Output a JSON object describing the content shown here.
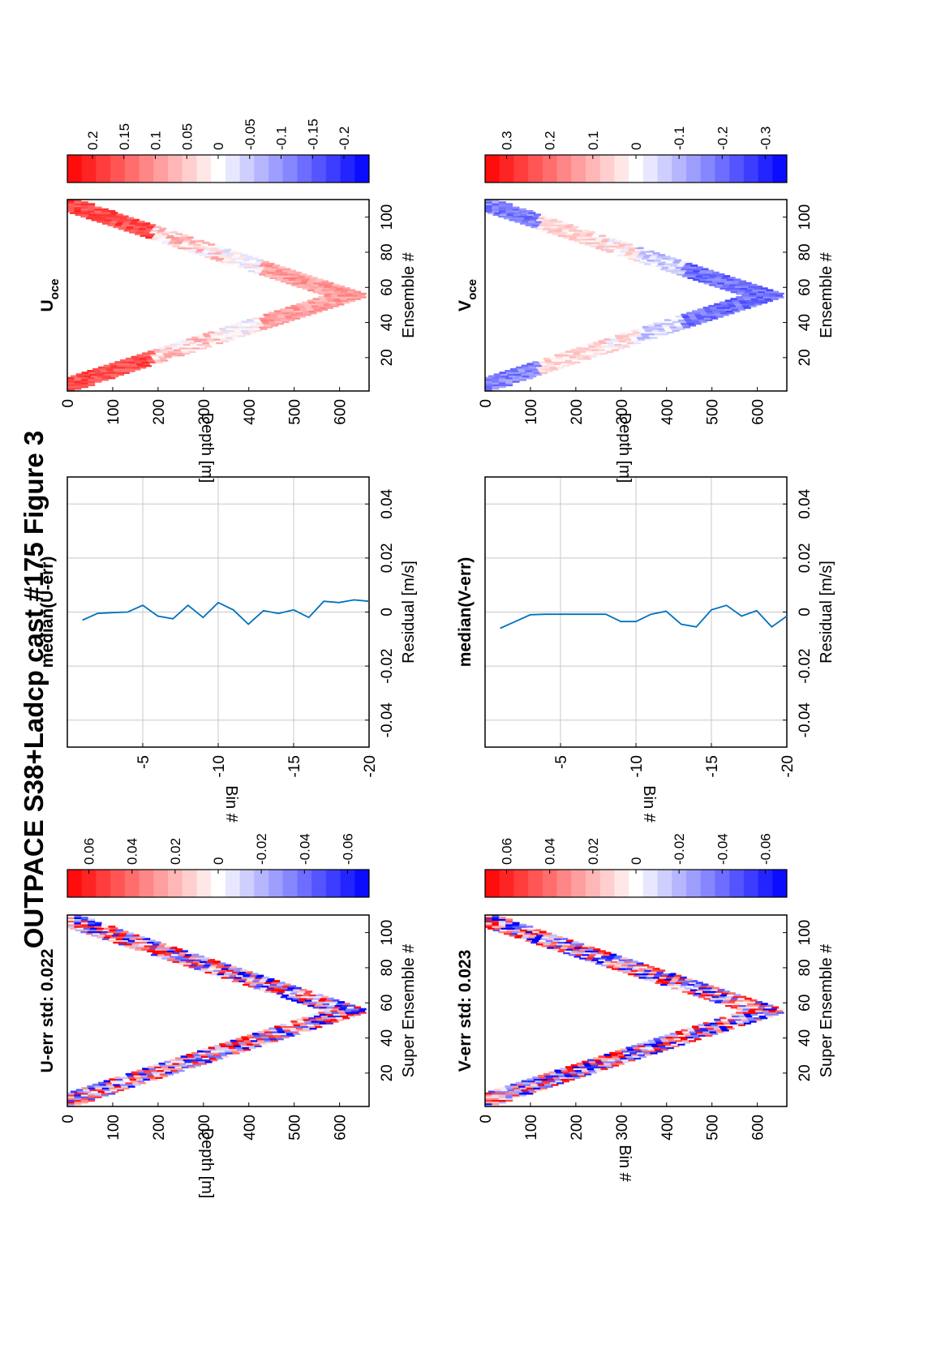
{
  "title": "OUTPACE S38+Ladcp cast #175  Figure 3",
  "palette": {
    "red": "#ff0000",
    "blue": "#0000ff",
    "white": "#ffffff",
    "line": "#0072bd",
    "grid": "#c8c8c8"
  },
  "chart_data": [
    {
      "id": "uerr",
      "type": "heatmap",
      "title": "U-err std: 0.022",
      "xlabel": "Super Ensemble #",
      "ylabel": "Depth [m]",
      "xticks": [
        20,
        40,
        60,
        80,
        100
      ],
      "yticks": [
        0,
        100,
        200,
        300,
        400,
        500,
        600
      ],
      "xlim": [
        1,
        110
      ],
      "ylim": [
        0,
        665
      ],
      "v_shape": {
        "turn_ensemble": 55,
        "max_depth": 655,
        "band_width_m": 90
      },
      "colorbar": {
        "ticks": [
          "0.06",
          "0.04",
          "0.02",
          "0",
          "-0.02",
          "-0.04",
          "-0.06"
        ],
        "values": [
          0.06,
          0.04,
          0.02,
          0,
          -0.02,
          -0.04,
          -0.06
        ],
        "range": [
          -0.07,
          0.07
        ]
      }
    },
    {
      "id": "umed",
      "type": "line",
      "title": "median(U-err)",
      "xlabel": "Residual [m/s]",
      "ylabel": "Bin #",
      "xticks": [
        "-0.04",
        "-0.02",
        "0",
        "0.02",
        "0.04"
      ],
      "xtick_values": [
        -0.04,
        -0.02,
        0,
        0.02,
        0.04
      ],
      "yticks": [
        "-5",
        "-10",
        "-15",
        "-20"
      ],
      "ytick_values": [
        -5,
        -10,
        -15,
        -20
      ],
      "xlim": [
        -0.05,
        0.05
      ],
      "ylim": [
        -20,
        0
      ],
      "series": [
        {
          "bins": [
            -1,
            -2,
            -3,
            -4,
            -5,
            -6,
            -7,
            -8,
            -9,
            -10,
            -11,
            -12,
            -13,
            -14,
            -15,
            -16,
            -17,
            -18,
            -19,
            -20
          ],
          "values": [
            -0.003,
            -0.0005,
            -0.0002,
            0,
            0.0025,
            -0.0015,
            -0.0025,
            0.0025,
            -0.002,
            0.0035,
            0.0008,
            -0.0045,
            0.0005,
            -0.0005,
            0.0008,
            -0.002,
            0.004,
            0.0035,
            0.0045,
            0.004
          ]
        }
      ]
    },
    {
      "id": "uoce",
      "type": "heatmap",
      "title": "U",
      "title_sub": "oce",
      "xlabel": "Ensemble #",
      "ylabel": "Depth [m]",
      "xticks": [
        20,
        40,
        60,
        80,
        100
      ],
      "yticks": [
        0,
        100,
        200,
        300,
        400,
        500,
        600
      ],
      "xlim": [
        1,
        110
      ],
      "ylim": [
        0,
        665
      ],
      "v_shape": {
        "turn_ensemble": 55,
        "max_depth": 655,
        "band_width_m": 90
      },
      "colorbar": {
        "ticks": [
          "0.2",
          "0.15",
          "0.1",
          "0.05",
          "0",
          "-0.05",
          "-0.1",
          "-0.15",
          "-0.2"
        ],
        "values": [
          0.2,
          0.15,
          0.1,
          0.05,
          0,
          -0.05,
          -0.1,
          -0.15,
          -0.2
        ],
        "range": [
          -0.24,
          0.24
        ]
      }
    },
    {
      "id": "verr",
      "type": "heatmap",
      "title": "V-err std: 0.023",
      "xlabel": "Super Ensemble #",
      "ylabel": "Bin #",
      "xticks": [
        20,
        40,
        60,
        80,
        100
      ],
      "yticks": [
        0,
        100,
        200,
        300,
        400,
        500,
        600
      ],
      "xlim": [
        1,
        110
      ],
      "ylim": [
        0,
        665
      ],
      "v_shape": {
        "turn_ensemble": 55,
        "max_depth": 655,
        "band_width_m": 90
      },
      "colorbar": {
        "ticks": [
          "0.06",
          "0.04",
          "0.02",
          "0",
          "-0.02",
          "-0.04",
          "-0.06"
        ],
        "values": [
          0.06,
          0.04,
          0.02,
          0,
          -0.02,
          -0.04,
          -0.06
        ],
        "range": [
          -0.07,
          0.07
        ]
      }
    },
    {
      "id": "vmed",
      "type": "line",
      "title": "median(V-err)",
      "xlabel": "Residual [m/s]",
      "ylabel": "Bin #",
      "xticks": [
        "-0.04",
        "-0.02",
        "0",
        "0.02",
        "0.04"
      ],
      "xtick_values": [
        -0.04,
        -0.02,
        0,
        0.02,
        0.04
      ],
      "yticks": [
        "-5",
        "-10",
        "-15",
        "-20"
      ],
      "ytick_values": [
        -5,
        -10,
        -15,
        -20
      ],
      "xlim": [
        -0.05,
        0.05
      ],
      "ylim": [
        -20,
        0
      ],
      "series": [
        {
          "bins": [
            -1,
            -2,
            -3,
            -4,
            -5,
            -6,
            -7,
            -8,
            -9,
            -10,
            -11,
            -12,
            -13,
            -14,
            -15,
            -16,
            -17,
            -18,
            -19,
            -20
          ],
          "values": [
            -0.006,
            -0.0035,
            -0.001,
            -0.0008,
            -0.0008,
            -0.0008,
            -0.0008,
            -0.0008,
            -0.0035,
            -0.0035,
            -0.0008,
            0.0003,
            -0.0045,
            -0.0055,
            0.0008,
            0.0025,
            -0.0015,
            0.0005,
            -0.0055,
            -0.0015
          ]
        }
      ]
    },
    {
      "id": "voce",
      "type": "heatmap",
      "title": "V",
      "title_sub": "oce",
      "xlabel": "Ensemble #",
      "ylabel": "Depth [m]",
      "xticks": [
        20,
        40,
        60,
        80,
        100
      ],
      "yticks": [
        0,
        100,
        200,
        300,
        400,
        500,
        600
      ],
      "xlim": [
        1,
        110
      ],
      "ylim": [
        0,
        665
      ],
      "v_shape": {
        "turn_ensemble": 55,
        "max_depth": 655,
        "band_width_m": 90
      },
      "colorbar": {
        "ticks": [
          "0.3",
          "0.2",
          "0.1",
          "0",
          "-0.1",
          "-0.2",
          "-0.3"
        ],
        "values": [
          0.3,
          0.2,
          0.1,
          0,
          -0.1,
          -0.2,
          -0.3
        ],
        "range": [
          -0.35,
          0.35
        ]
      }
    }
  ]
}
